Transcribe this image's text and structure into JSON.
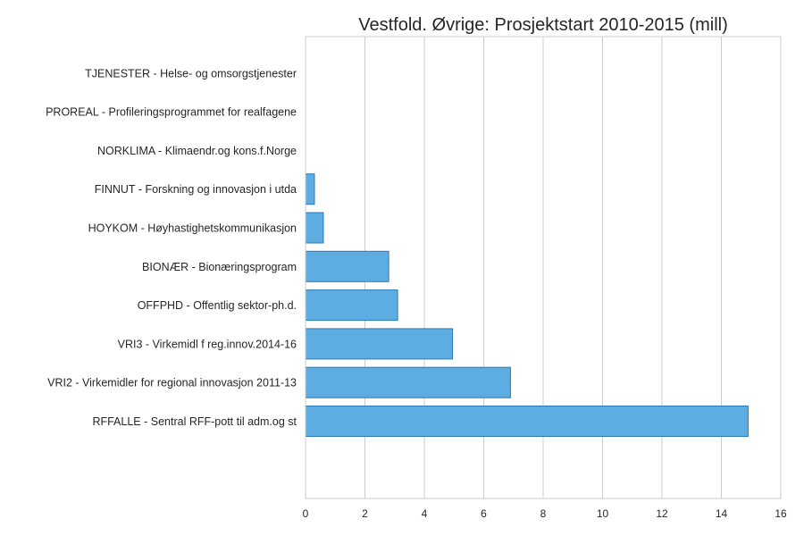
{
  "chart_data": {
    "type": "bar",
    "orientation": "horizontal",
    "title": "Vestfold. Øvrige: Prosjektstart 2010-2015 (mill)",
    "xlabel": "",
    "ylabel": "",
    "xlim": [
      0,
      16
    ],
    "xticks": [
      0,
      2,
      4,
      6,
      8,
      10,
      12,
      14,
      16
    ],
    "grid": true,
    "bar_color": "#5dade2",
    "categories": [
      "RFFALLE - Sentral RFF-pott til adm.og st",
      "VRI2 - Virkemidler for regional innovasjon 2011-13",
      "VRI3 - Virkemidl f reg.innov.2014-16",
      "OFFPHD - Offentlig sektor-ph.d.",
      "BIONÆR - Bionæringsprogram",
      "HOYKOM - Høyhastighetskommunikasjon",
      "FINNUT - Forskning og innovasjon i utda",
      "NORKLIMA - Klimaendr.og kons.f.Norge",
      "PROREAL - Profileringsprogrammet for realfagene",
      "TJENESTER - Helse- og omsorgstjenester"
    ],
    "values": [
      14.9,
      6.9,
      4.95,
      3.1,
      2.8,
      0.6,
      0.3,
      0,
      0,
      0
    ]
  }
}
